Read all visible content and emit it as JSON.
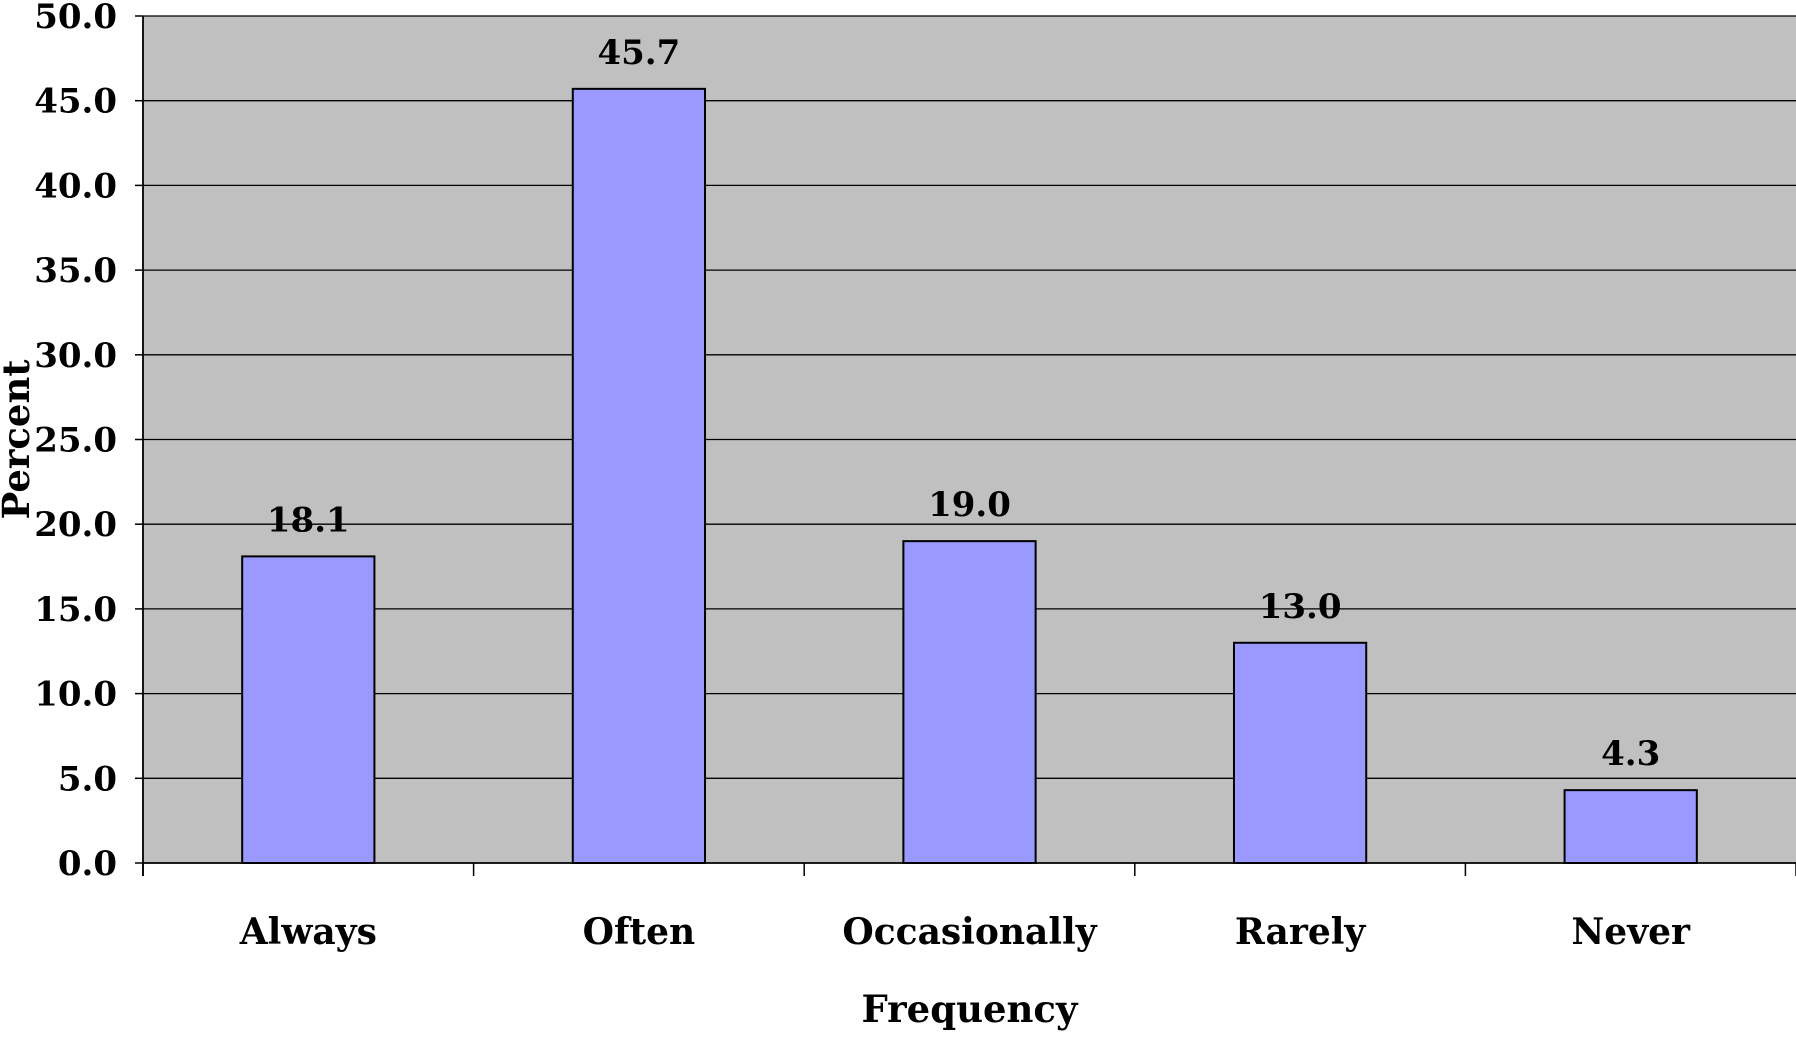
{
  "chart_data": {
    "type": "bar",
    "categories": [
      "Always",
      "Often",
      "Occasionally",
      "Rarely",
      "Never"
    ],
    "values": [
      18.1,
      45.7,
      19.0,
      13.0,
      4.3
    ],
    "value_labels": [
      "18.1",
      "45.7",
      "19.0",
      "13.0",
      "4.3"
    ],
    "title": "",
    "xlabel": "Frequency",
    "ylabel": "Percent",
    "ylim": [
      0,
      50
    ],
    "y_ticks": [
      "0.0",
      "5.0",
      "10.0",
      "15.0",
      "20.0",
      "25.0",
      "30.0",
      "35.0",
      "40.0",
      "45.0",
      "50.0"
    ],
    "grid": true,
    "legend": "none"
  },
  "colors": {
    "plot_background": "#c0c0c0",
    "bar_fill": "#9999ff",
    "bar_stroke": "#000000",
    "gridline": "#000000"
  }
}
